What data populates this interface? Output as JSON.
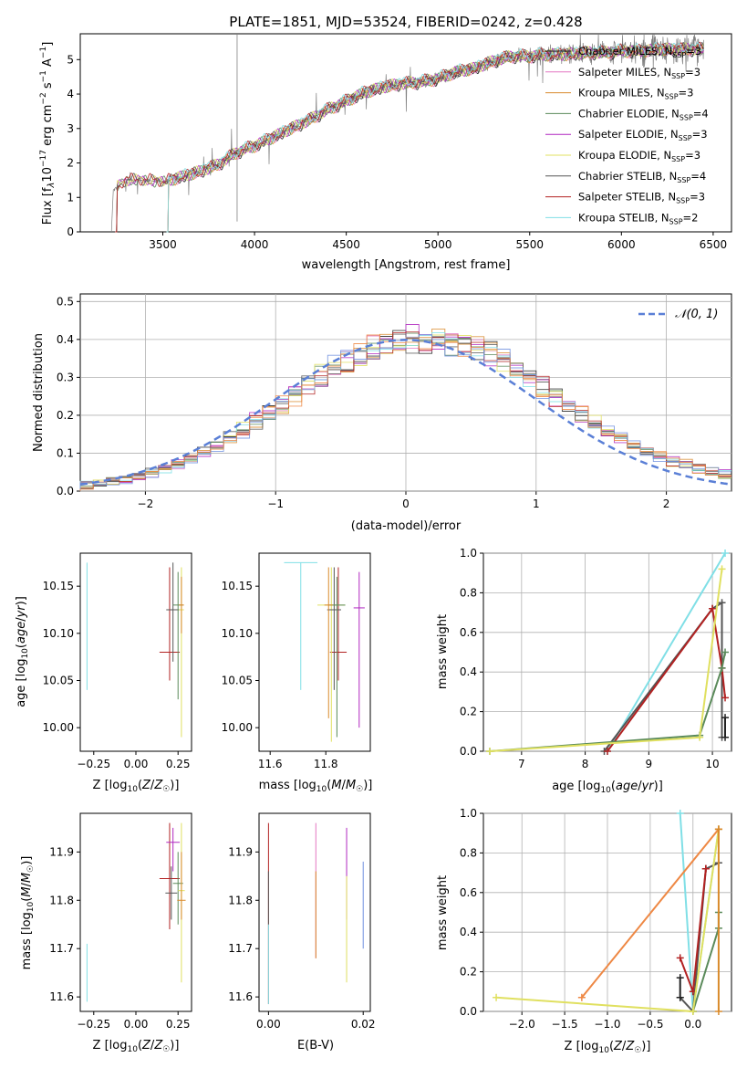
{
  "title": "PLATE=1851, MJD=53524, FIBERID=0242, z=0.428",
  "colors": {
    "chabrier_miles": "#222222",
    "salpeter_miles": "#e377c2",
    "kroupa_miles": "#d98a2b",
    "chabrier_elodie": "#5a8a5a",
    "salpeter_elodie": "#b027c0",
    "kroupa_elodie": "#e0e060",
    "chabrier_stelib": "#555555",
    "salpeter_stelib": "#b22222",
    "kroupa_stelib": "#80dfe6",
    "data": "#808080",
    "normal": "#5a7fd6",
    "extra1": "#6f8fdf",
    "extra2": "#ee8844"
  },
  "chart_data": [
    {
      "id": "spectrum",
      "type": "line",
      "xlabel": "wavelength [Angstrom, rest frame]",
      "ylabel": "Flux [f_λ 10^-17 erg cm^-2 s^-1 A^-1]",
      "xlim": [
        3050,
        6600
      ],
      "ylim": [
        0,
        5.75
      ],
      "xticks": [
        "3500",
        "4000",
        "4500",
        "5000",
        "5500",
        "6000",
        "6500"
      ],
      "yticks": [
        "0",
        "1",
        "2",
        "3",
        "4",
        "5"
      ],
      "legend": "top-right",
      "series": [
        {
          "name": "Chabrier MILES, N_SSP=3",
          "color": "chabrier_miles"
        },
        {
          "name": "Salpeter MILES, N_SSP=3",
          "color": "salpeter_miles"
        },
        {
          "name": "Kroupa MILES, N_SSP=3",
          "color": "kroupa_miles"
        },
        {
          "name": "Chabrier ELODIE, N_SSP=4",
          "color": "chabrier_elodie"
        },
        {
          "name": "Salpeter ELODIE, N_SSP=3",
          "color": "salpeter_elodie"
        },
        {
          "name": "Kroupa ELODIE, N_SSP=3",
          "color": "kroupa_elodie"
        },
        {
          "name": "Chabrier STELIB, N_SSP=4",
          "color": "chabrier_stelib"
        },
        {
          "name": "Salpeter STELIB, N_SSP=3",
          "color": "salpeter_stelib"
        },
        {
          "name": "Kroupa STELIB, N_SSP=2",
          "color": "kroupa_stelib"
        }
      ],
      "model_trend": {
        "x": [
          3230,
          3300,
          3400,
          3500,
          3600,
          3700,
          3800,
          3900,
          4000,
          4100,
          4200,
          4300,
          4400,
          4500,
          4600,
          4700,
          4800,
          4900,
          5000,
          5100,
          5200,
          5300,
          5400,
          5500,
          5600,
          5700,
          5800,
          5900,
          6000,
          6100,
          6200,
          6300,
          6450
        ],
        "y": [
          1.2,
          1.5,
          1.5,
          1.45,
          1.6,
          1.75,
          1.95,
          2.3,
          2.5,
          2.75,
          3.0,
          3.25,
          3.55,
          3.8,
          4.05,
          4.2,
          4.3,
          4.35,
          4.45,
          4.65,
          4.75,
          4.95,
          5.1,
          5.1,
          5.15,
          5.15,
          5.2,
          5.2,
          5.25,
          5.25,
          5.3,
          5.3,
          5.3
        ]
      }
    },
    {
      "id": "residuals",
      "type": "line",
      "xlabel": "(data-model)/error",
      "ylabel": "Normed distribution",
      "xlim": [
        -2.5,
        2.5
      ],
      "ylim": [
        0,
        0.52
      ],
      "xticks": [
        "−2",
        "−1",
        "0",
        "1",
        "2"
      ],
      "yticks": [
        "0.0",
        "0.1",
        "0.2",
        "0.3",
        "0.4",
        "0.5"
      ],
      "legend_label": "N(0,1)",
      "grid": true
    },
    {
      "id": "age_vs_Z",
      "type": "scatter",
      "xlabel": "Z [log10(Z/Z☉)]",
      "ylabel": "age [log10(age/yr)]",
      "xlim": [
        -0.33,
        0.33
      ],
      "ylim": [
        9.975,
        10.185
      ],
      "xticks": [
        "−0.25",
        "0.00",
        "0.25"
      ],
      "yticks": [
        "10.00",
        "10.05",
        "10.10",
        "10.15"
      ],
      "points": [
        {
          "x": -0.29,
          "y": 10.11,
          "xerr": 0.0,
          "ylo": 10.04,
          "yhi": 10.175,
          "color": "kroupa_stelib"
        },
        {
          "x": 0.2,
          "y": 10.08,
          "xerr": 0.12,
          "ylo": 10.05,
          "yhi": 10.17,
          "color": "salpeter_stelib"
        },
        {
          "x": 0.22,
          "y": 10.125,
          "xerr": 0.08,
          "ylo": 10.07,
          "yhi": 10.175,
          "color": "chabrier_stelib"
        },
        {
          "x": 0.25,
          "y": 10.13,
          "xerr": 0.06,
          "ylo": 10.03,
          "yhi": 10.165,
          "color": "chabrier_elodie"
        },
        {
          "x": 0.27,
          "y": 10.125,
          "xerr": 0.03,
          "ylo": 9.99,
          "yhi": 10.17,
          "color": "kroupa_elodie"
        },
        {
          "x": 0.27,
          "y": 10.13,
          "xerr": 0.03,
          "ylo": 10.1,
          "yhi": 10.16,
          "color": "kroupa_miles"
        }
      ]
    },
    {
      "id": "age_vs_mass",
      "type": "scatter",
      "xlabel": "mass [log10(M/M☉)]",
      "xlim": [
        11.56,
        11.96
      ],
      "ylim": [
        9.975,
        10.185
      ],
      "xticks": [
        "11.6",
        "11.8"
      ],
      "yticks": [
        "10.00",
        "10.05",
        "10.10",
        "10.15"
      ],
      "points": [
        {
          "x": 11.71,
          "y": 10.175,
          "xerr": 0.12,
          "ylo": 10.04,
          "yhi": 10.175,
          "color": "kroupa_stelib"
        },
        {
          "x": 11.845,
          "y": 10.08,
          "xerr": 0.06,
          "ylo": 10.05,
          "yhi": 10.17,
          "color": "salpeter_stelib"
        },
        {
          "x": 11.82,
          "y": 10.13,
          "xerr": 0.1,
          "ylo": 9.985,
          "yhi": 10.17,
          "color": "kroupa_elodie"
        },
        {
          "x": 11.83,
          "y": 10.125,
          "xerr": 0.05,
          "ylo": 10.04,
          "yhi": 10.17,
          "color": "chabrier_stelib"
        },
        {
          "x": 11.84,
          "y": 10.13,
          "xerr": 0.06,
          "ylo": 9.99,
          "yhi": 10.16,
          "color": "chabrier_elodie"
        },
        {
          "x": 11.92,
          "y": 10.127,
          "xerr": 0.04,
          "ylo": 10.0,
          "yhi": 10.165,
          "color": "salpeter_elodie"
        },
        {
          "x": 11.81,
          "y": 10.13,
          "xerr": 0.03,
          "ylo": 10.01,
          "yhi": 10.17,
          "color": "kroupa_miles"
        }
      ]
    },
    {
      "id": "mass_weight_vs_age",
      "type": "line",
      "xlabel": "age [log10(age/yr)]",
      "ylabel": "mass weight",
      "xlim": [
        6.4,
        10.3
      ],
      "ylim": [
        0,
        1.0
      ],
      "xticks": [
        "7",
        "8",
        "9",
        "10"
      ],
      "yticks": [
        "0.0",
        "0.2",
        "0.4",
        "0.6",
        "0.8",
        "1.0"
      ],
      "grid": true,
      "series": [
        {
          "color": "kroupa_stelib",
          "x": [
            8.35,
            10.2
          ],
          "y": [
            0.0,
            1.0
          ]
        },
        {
          "color": "chabrier_stelib",
          "x": [
            8.3,
            10.0,
            10.15,
            10.15
          ],
          "y": [
            0.0,
            0.72,
            0.75,
            0.07
          ]
        },
        {
          "color": "salpeter_stelib",
          "x": [
            8.35,
            10.0,
            10.15,
            10.2
          ],
          "y": [
            0.0,
            0.72,
            0.42,
            0.27
          ]
        },
        {
          "color": "chabrier_elodie",
          "x": [
            6.5,
            9.8,
            10.15,
            10.2
          ],
          "y": [
            0.0,
            0.08,
            0.42,
            0.5
          ]
        },
        {
          "color": "kroupa_elodie",
          "x": [
            6.5,
            9.8,
            10.15
          ],
          "y": [
            0.0,
            0.07,
            0.92
          ]
        },
        {
          "color": "chabrier_miles",
          "x": [
            10.2,
            10.2
          ],
          "y": [
            0.07,
            0.17
          ]
        }
      ]
    },
    {
      "id": "mass_vs_Z",
      "type": "scatter",
      "xlabel": "Z [log10(Z/Z☉)]",
      "ylabel": "mass [log10(M/M☉)]",
      "xlim": [
        -0.33,
        0.33
      ],
      "ylim": [
        11.57,
        11.98
      ],
      "xticks": [
        "−0.25",
        "0.00",
        "0.25"
      ],
      "yticks": [
        "11.6",
        "11.7",
        "11.8",
        "11.9"
      ],
      "points": [
        {
          "x": -0.29,
          "y": 11.65,
          "xerr": 0.0,
          "ylo": 11.59,
          "yhi": 11.71,
          "color": "kroupa_stelib"
        },
        {
          "x": 0.2,
          "y": 11.845,
          "xerr": 0.12,
          "ylo": 11.74,
          "yhi": 11.96,
          "color": "salpeter_stelib"
        },
        {
          "x": 0.22,
          "y": 11.92,
          "xerr": 0.08,
          "ylo": 11.86,
          "yhi": 11.95,
          "color": "salpeter_elodie"
        },
        {
          "x": 0.21,
          "y": 11.815,
          "xerr": 0.07,
          "ylo": 11.76,
          "yhi": 11.87,
          "color": "chabrier_stelib"
        },
        {
          "x": 0.25,
          "y": 11.835,
          "xerr": 0.06,
          "ylo": 11.75,
          "yhi": 11.9,
          "color": "chabrier_elodie"
        },
        {
          "x": 0.27,
          "y": 11.82,
          "xerr": 0.04,
          "ylo": 11.63,
          "yhi": 11.96,
          "color": "kroupa_elodie"
        },
        {
          "x": 0.27,
          "y": 11.8,
          "xerr": 0.05,
          "ylo": 11.76,
          "yhi": 11.9,
          "color": "kroupa_miles"
        }
      ]
    },
    {
      "id": "mass_vs_ebv",
      "type": "scatter",
      "xlabel": "E(B-V)",
      "xlim": [
        -0.002,
        0.0215
      ],
      "ylim": [
        11.57,
        11.98
      ],
      "xticks": [
        "0.00",
        "0.02"
      ],
      "yticks": [
        "11.6",
        "11.7",
        "11.8",
        "11.9"
      ],
      "points": [
        {
          "x": 0.0,
          "ylo": 11.585,
          "yhi": 11.96,
          "color": "salpeter_stelib"
        },
        {
          "x": 0.0,
          "ylo": 11.75,
          "yhi": 11.86,
          "color": "chabrier_stelib"
        },
        {
          "x": 0.0,
          "ylo": 11.585,
          "yhi": 11.75,
          "color": "kroupa_stelib"
        },
        {
          "x": 0.01,
          "ylo": 11.68,
          "yhi": 11.96,
          "color": "salpeter_miles"
        },
        {
          "x": 0.01,
          "ylo": 11.68,
          "yhi": 11.86,
          "color": "kroupa_miles"
        },
        {
          "x": 0.0165,
          "ylo": 11.76,
          "yhi": 11.95,
          "color": "salpeter_elodie"
        },
        {
          "x": 0.0165,
          "ylo": 11.63,
          "yhi": 11.85,
          "color": "kroupa_elodie"
        },
        {
          "x": 0.02,
          "ylo": 11.7,
          "yhi": 11.88,
          "color": "extra1"
        }
      ]
    },
    {
      "id": "mass_weight_vs_Z",
      "type": "line",
      "xlabel": "Z [log10(Z/Z☉)]",
      "ylabel": "mass weight",
      "xlim": [
        -2.45,
        0.45
      ],
      "ylim": [
        0,
        1.0
      ],
      "xticks": [
        "−2.0",
        "−1.5",
        "−1.0",
        "−0.5",
        "0.0"
      ],
      "yticks": [
        "0.0",
        "0.2",
        "0.4",
        "0.6",
        "0.8",
        "1.0"
      ],
      "grid": true,
      "series": [
        {
          "color": "kroupa_stelib",
          "x": [
            -0.15,
            0.0,
            0.3
          ],
          "y": [
            1.0,
            0.0,
            0.92
          ]
        },
        {
          "color": "chabrier_stelib",
          "x": [
            -0.15,
            0.0,
            0.15,
            0.3
          ],
          "y": [
            0.07,
            0.0,
            0.72,
            0.75
          ]
        },
        {
          "color": "salpeter_stelib",
          "x": [
            -0.15,
            0.0,
            0.15,
            0.15
          ],
          "y": [
            0.27,
            0.1,
            0.72,
            0.72
          ]
        },
        {
          "color": "chabrier_elodie",
          "x": [
            0.0,
            0.3,
            0.3
          ],
          "y": [
            0.0,
            0.42,
            0.5
          ]
        },
        {
          "color": "kroupa_elodie",
          "x": [
            -2.3,
            0.0,
            0.3
          ],
          "y": [
            0.07,
            0.0,
            0.92
          ]
        },
        {
          "color": "extra2",
          "x": [
            -1.3,
            0.3
          ],
          "y": [
            0.07,
            0.92
          ]
        },
        {
          "color": "chabrier_miles",
          "x": [
            -0.15,
            -0.15
          ],
          "y": [
            0.07,
            0.17
          ]
        },
        {
          "color": "kroupa_miles",
          "x": [
            0.3,
            0.3
          ],
          "y": [
            0.0,
            0.92
          ]
        }
      ]
    }
  ]
}
